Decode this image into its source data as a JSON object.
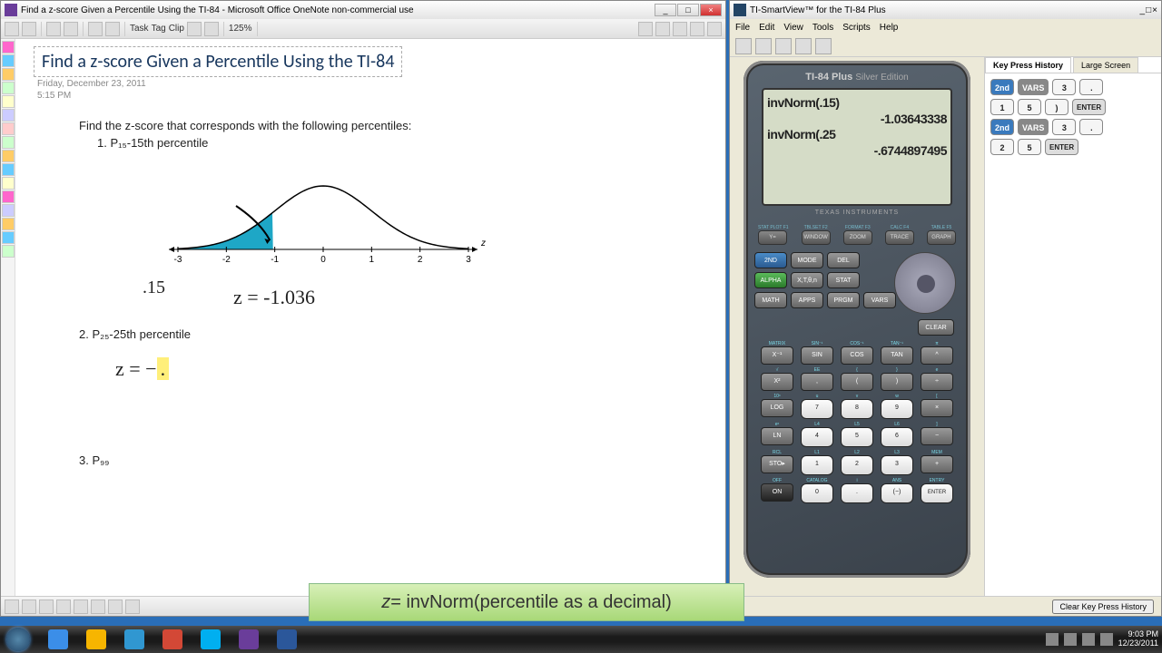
{
  "onenote": {
    "title": "Find a z-score Given a Percentile Using the TI-84 - Microsoft Office OneNote non-commercial use",
    "toolbar": {
      "task": "Task",
      "tag": "Tag",
      "clip": "Clip",
      "zoom": "125%"
    },
    "page": {
      "heading": "Find a z-score Given a Percentile Using the TI-84",
      "date": "Friday, December 23, 2011",
      "time": "5:15 PM",
      "prompt": "Find the z-score that corresponds with the following percentiles:",
      "item1": "1.   P₁₅-15th percentile",
      "ann_area": ".15",
      "ann_z1": "z = -1.036",
      "item2": "2.   P₂₅-25th percentile",
      "ann_z2": "z =  -.",
      "item3": "3.   P₉₉"
    },
    "chart": {
      "xmin": -3,
      "xmax": 3,
      "ticks": [
        -3,
        -2,
        -1,
        0,
        1,
        2,
        3
      ],
      "shade_to": -1.036,
      "shade_color": "#1ea7c6",
      "axis_color": "#000000",
      "curve_color": "#000000"
    },
    "strip_colors": [
      "#f6c",
      "#6cf",
      "#fc6",
      "#cfc",
      "#ffc",
      "#ccf",
      "#fcc",
      "#cfc",
      "#fc6",
      "#6cf",
      "#ffc",
      "#f6c",
      "#ccf",
      "#fc6",
      "#6cf",
      "#cfc"
    ]
  },
  "smartview": {
    "title": "TI-SmartView™ for the TI-84 Plus",
    "menu": [
      "File",
      "Edit",
      "View",
      "Tools",
      "Scripts",
      "Help"
    ],
    "calc": {
      "brand": "TI-84 Plus",
      "edition": "Silver Edition",
      "ti": "TEXAS INSTRUMENTS",
      "screen": [
        "invNorm(.15)",
        "-1.03643338",
        "invNorm(.25",
        "-.6744897495"
      ],
      "fkeys": [
        {
          "l": "STAT PLOT F1",
          "k": "Y="
        },
        {
          "l": "TBLSET F2",
          "k": "WINDOW"
        },
        {
          "l": "FORMAT F3",
          "k": "ZOOM"
        },
        {
          "l": "CALC F4",
          "k": "TRACE"
        },
        {
          "l": "TABLE F5",
          "k": "GRAPH"
        }
      ],
      "left3x4": [
        {
          "t": "2ND",
          "c": "k-blue"
        },
        {
          "t": "MODE",
          "c": "k-gray"
        },
        {
          "t": "DEL",
          "c": "k-gray"
        },
        {
          "t": "",
          "c": ""
        },
        {
          "t": "ALPHA",
          "c": "k-green"
        },
        {
          "t": "X,T,θ,n",
          "c": "k-gray"
        },
        {
          "t": "STAT",
          "c": "k-gray"
        },
        {
          "t": "",
          "c": ""
        },
        {
          "t": "MATH",
          "c": "k-gray"
        },
        {
          "t": "APPS",
          "c": "k-gray"
        },
        {
          "t": "PRGM",
          "c": "k-gray"
        },
        {
          "t": "VARS",
          "c": "k-gray"
        }
      ],
      "clear": "CLEAR",
      "grid": [
        [
          "X⁻¹",
          "SIN",
          "COS",
          "TAN",
          "^"
        ],
        [
          "X²",
          ",",
          "(",
          ")",
          "÷"
        ],
        [
          "LOG",
          "7",
          "8",
          "9",
          "×"
        ],
        [
          "LN",
          "4",
          "5",
          "6",
          "−"
        ],
        [
          "STO▸",
          "1",
          "2",
          "3",
          "+"
        ],
        [
          "ON",
          "0",
          ".",
          "(−)",
          "ENTER"
        ]
      ],
      "grid_labels": [
        [
          "MATRIX",
          "SIN⁻¹",
          "COS⁻¹",
          "TAN⁻¹",
          "π"
        ],
        [
          "√",
          "EE",
          "{",
          "}",
          "e"
        ],
        [
          "10ˣ",
          "u",
          "v",
          "w",
          "["
        ],
        [
          "eˣ",
          "L4",
          "L5",
          "L6",
          "]"
        ],
        [
          "RCL",
          "L1",
          "L2",
          "L3",
          "MEM"
        ],
        [
          "OFF",
          "CATALOG",
          "i",
          "ANS",
          "ENTRY"
        ]
      ]
    },
    "tabs": {
      "a": "Key Press History",
      "b": "Large Screen"
    },
    "history": [
      [
        {
          "t": "2nd",
          "c": "kh-2nd"
        },
        {
          "t": "VARS",
          "c": "kh-vars"
        },
        {
          "t": "3",
          "c": "kh-w"
        },
        {
          "t": ".",
          "c": "kh-w"
        }
      ],
      [
        {
          "t": "1",
          "c": "kh-w"
        },
        {
          "t": "5",
          "c": "kh-w"
        },
        {
          "t": ")",
          "c": "kh-w"
        },
        {
          "t": "ENTER",
          "c": "kh-enter"
        }
      ],
      [
        {
          "t": "2nd",
          "c": "kh-2nd"
        },
        {
          "t": "VARS",
          "c": "kh-vars"
        },
        {
          "t": "3",
          "c": "kh-w"
        },
        {
          "t": ".",
          "c": "kh-w"
        }
      ],
      [
        {
          "t": "2",
          "c": "kh-w"
        },
        {
          "t": "5",
          "c": "kh-w"
        },
        {
          "t": "ENTER",
          "c": "kh-enter"
        }
      ]
    ],
    "clearbtn": "Clear Key Press History"
  },
  "caption": {
    "z": "z",
    "rest": " = invNorm(percentile as a decimal)"
  },
  "taskbar": {
    "apps": [
      "#3b8ee8",
      "#f7b500",
      "#3097d1",
      "#d34836",
      "#00aff0",
      "#6a3d9a",
      "#2b579a"
    ],
    "clock_time": "9:03 PM",
    "clock_date": "12/23/2011"
  }
}
